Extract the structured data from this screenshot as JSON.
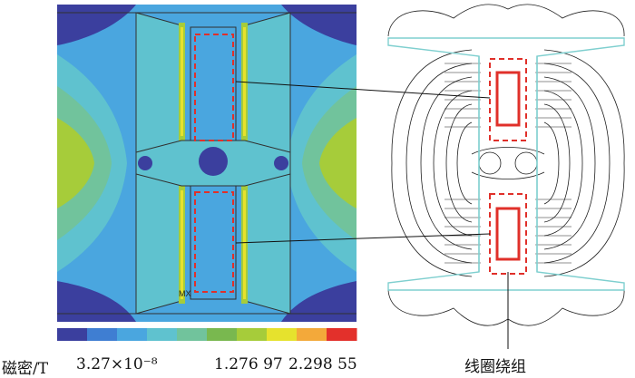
{
  "legend": {
    "label": "磁密/T",
    "min_value": "3.27×10⁻⁸",
    "mid_value": "1.276 97",
    "max_value": "2.298 55",
    "colors": [
      "#3b3f9e",
      "#3f7ed2",
      "#4aa6df",
      "#5fc2cf",
      "#71c39c",
      "#79b84f",
      "#a6cc3a",
      "#e6e22d",
      "#f3a93a",
      "#e3302b"
    ]
  },
  "annotation": {
    "coil_label": "线圈绕组"
  },
  "colors": {
    "frame": "#303030",
    "dashed_box": "#e0302a",
    "flux_outline": "#7fcfcf",
    "coil_solid": "#e0302a"
  },
  "mx_tag": "MX"
}
